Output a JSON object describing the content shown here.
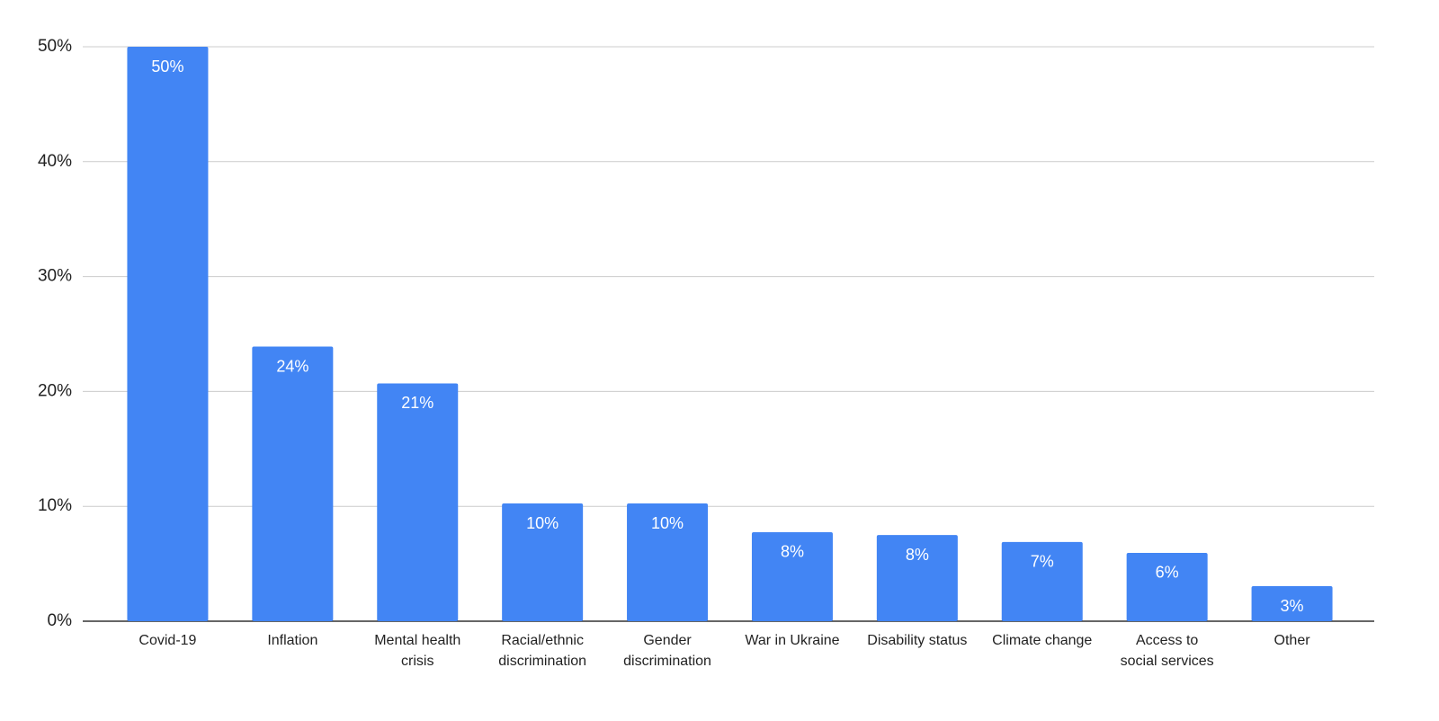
{
  "chart_data": {
    "type": "bar",
    "categories": [
      "Covid-19",
      "Inflation",
      "Mental health\ncrisis",
      "Racial/ethnic\ndiscrimination",
      "Gender\ndiscrimination",
      "War in Ukraine",
      "Disability status",
      "Climate change",
      "Access to\nsocial services",
      "Other"
    ],
    "values": [
      50,
      23.9,
      20.7,
      10.25,
      10.25,
      7.75,
      7.5,
      6.9,
      5.95,
      3.05
    ],
    "value_labels": [
      "50%",
      "24%",
      "21%",
      "10%",
      "10%",
      "8%",
      "8%",
      "7%",
      "6%",
      "3%"
    ],
    "color": "#4285f4",
    "ylim": [
      0,
      50
    ],
    "yticks": [
      {
        "value": 0,
        "label": "0%"
      },
      {
        "value": 10,
        "label": "10%"
      },
      {
        "value": 20,
        "label": "20%"
      },
      {
        "value": 30,
        "label": "30%"
      },
      {
        "value": 40,
        "label": "40%"
      },
      {
        "value": 50,
        "label": "50%"
      }
    ],
    "grid": true
  }
}
